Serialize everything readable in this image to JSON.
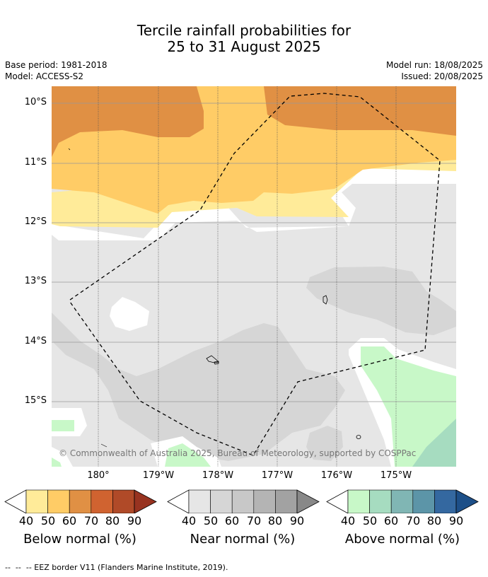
{
  "title": {
    "line1": "Tercile rainfall probabilities for",
    "line2": "25 to 31 August 2025"
  },
  "meta": {
    "base_period": "Base period: 1981-2018",
    "model": "Model: ACCESS-S2",
    "model_run": "Model run: 18/08/2025",
    "issued": "Issued: 20/08/2025"
  },
  "map": {
    "attribution": "© Commonwealth of Australia 2025, Bureau of Meteorology, supported by COSPPac",
    "lat_labels": [
      "10°S",
      "11°S",
      "12°S",
      "13°S",
      "14°S",
      "15°S"
    ],
    "lon_labels": [
      "180°",
      "179°W",
      "178°W",
      "177°W",
      "176°W",
      "175°W"
    ],
    "border_style": "dashed"
  },
  "legend": {
    "ticks": [
      "40",
      "50",
      "60",
      "70",
      "80",
      "90"
    ],
    "below": {
      "label": "Below normal (%)",
      "colors": [
        "#ffeb99",
        "#ffcc66",
        "#e09044",
        "#d06330",
        "#b04a28",
        "#983320"
      ]
    },
    "near": {
      "label": "Near normal (%)",
      "colors": [
        "#e6e6e6",
        "#d6d6d6",
        "#c8c8c8",
        "#b4b4b4",
        "#a2a2a2",
        "#888888"
      ]
    },
    "above": {
      "label": "Above normal (%)",
      "colors": [
        "#c8f8c8",
        "#a6dcc0",
        "#80b6b4",
        "#5c95a8",
        "#3468a0",
        "#1d4f88"
      ]
    }
  },
  "footer": "--  --  -- EEZ border V11 (Flanders Marine Institute, 2019)."
}
